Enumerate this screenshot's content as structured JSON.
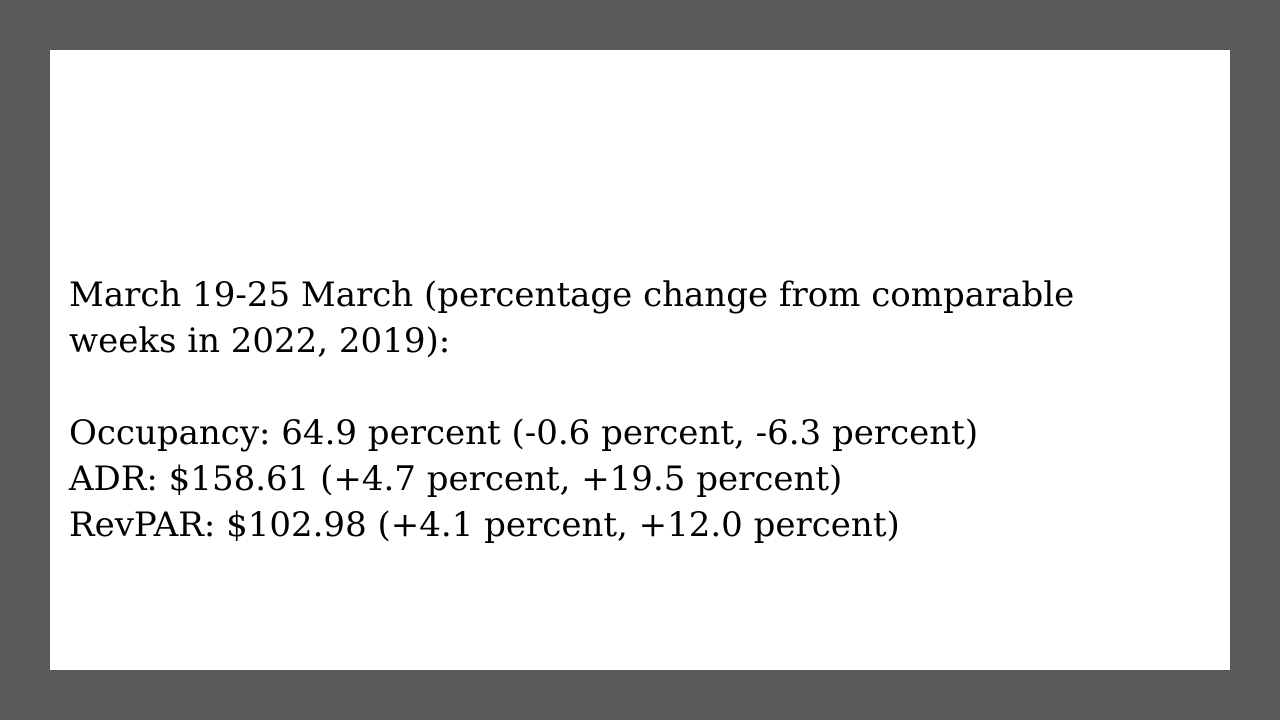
{
  "colors": {
    "frame": "#5a5a5a",
    "slide": "#ffffff",
    "text": "#000000"
  },
  "heading": {
    "line1": "March 19-25 March (percentage change from comparable",
    "line2": "weeks in 2022, 2019):"
  },
  "stats": [
    "Occupancy: 64.9 percent (-0.6 percent, -6.3 percent)",
    "ADR: $158.61 (+4.7 percent, +19.5 percent)",
    "RevPAR: $102.98 (+4.1 percent, +12.0 percent)"
  ]
}
